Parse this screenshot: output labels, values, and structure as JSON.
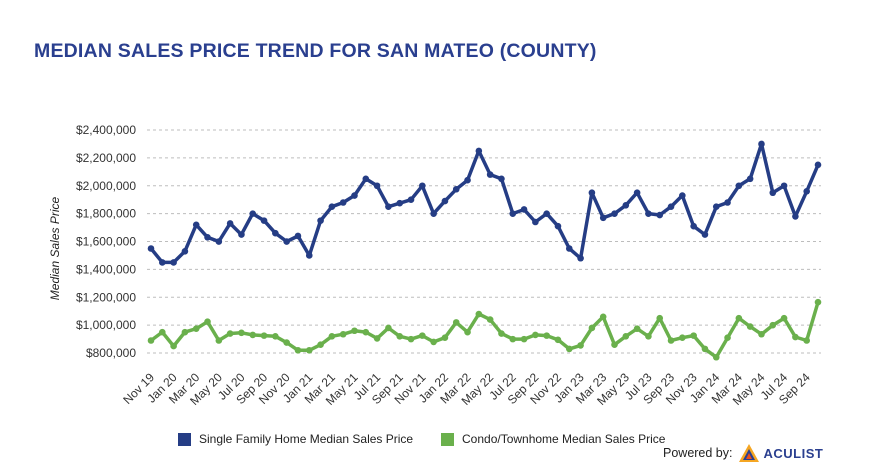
{
  "title": "MEDIAN SALES PRICE TREND FOR SAN MATEO (COUNTY)",
  "powered_by": {
    "label": "Powered by:",
    "brand": "ACULIST"
  },
  "chart_data": {
    "type": "line",
    "title": "MEDIAN SALES PRICE TREND FOR SAN MATEO (COUNTY)",
    "xlabel": "",
    "ylabel": "Median Sales Price",
    "ylim": [
      700000,
      2400000
    ],
    "yticks": [
      800000,
      1000000,
      1200000,
      1400000,
      1600000,
      1800000,
      2000000,
      2200000,
      2400000
    ],
    "ytick_labels": [
      "$800,000",
      "$1,000,000",
      "$1,200,000",
      "$1,400,000",
      "$1,600,000",
      "$1,800,000",
      "$2,000,000",
      "$2,200,000",
      "$2,400,000"
    ],
    "grid": true,
    "legend_position": "bottom",
    "x": [
      "Nov 19",
      "Dec 19",
      "Jan 20",
      "Feb 20",
      "Mar 20",
      "Apr 20",
      "May 20",
      "Jun 20",
      "Jul 20",
      "Aug 20",
      "Sep 20",
      "Oct 20",
      "Nov 20",
      "Dec 20",
      "Jan 21",
      "Feb 21",
      "Mar 21",
      "Apr 21",
      "May 21",
      "Jun 21",
      "Jul 21",
      "Aug 21",
      "Sep 21",
      "Oct 21",
      "Nov 21",
      "Dec 21",
      "Jan 22",
      "Feb 22",
      "Mar 22",
      "Apr 22",
      "May 22",
      "Jun 22",
      "Jul 22",
      "Aug 22",
      "Sep 22",
      "Oct 22",
      "Nov 22",
      "Dec 22",
      "Jan 23",
      "Feb 23",
      "Mar 23",
      "Apr 23",
      "May 23",
      "Jun 23",
      "Jul 23",
      "Aug 23",
      "Sep 23",
      "Oct 23",
      "Nov 23",
      "Dec 23",
      "Jan 24",
      "Feb 24",
      "Mar 24",
      "Apr 24",
      "May 24",
      "Jun 24",
      "Jul 24",
      "Aug 24",
      "Sep 24",
      "Oct 24"
    ],
    "x_tick_labels": [
      "Nov 19",
      "Jan 20",
      "Mar 20",
      "May 20",
      "Jul 20",
      "Sep 20",
      "Nov 20",
      "Jan 21",
      "Mar 21",
      "May 21",
      "Jul 21",
      "Sep 21",
      "Nov 21",
      "Jan 22",
      "Mar 22",
      "May 22",
      "Jul 22",
      "Sep 22",
      "Nov 22",
      "Jan 23",
      "Mar 23",
      "May 23",
      "Jul 23",
      "Sep 23",
      "Nov 23",
      "Jan 24",
      "Mar 24",
      "May 24",
      "Jul 24",
      "Sep 24"
    ],
    "series": [
      {
        "name": "Single Family Home Median Sales Price",
        "color": "#253d85",
        "values": [
          1550000,
          1450000,
          1450000,
          1530000,
          1720000,
          1630000,
          1600000,
          1730000,
          1650000,
          1800000,
          1750000,
          1660000,
          1600000,
          1640000,
          1500000,
          1750000,
          1850000,
          1880000,
          1930000,
          2050000,
          2000000,
          1850000,
          1875000,
          1900000,
          2000000,
          1800000,
          1890000,
          1975000,
          2040000,
          2250000,
          2080000,
          2050000,
          1800000,
          1830000,
          1740000,
          1800000,
          1710000,
          1550000,
          1480000,
          1950000,
          1770000,
          1800000,
          1860000,
          1950000,
          1800000,
          1790000,
          1850000,
          1930000,
          1710000,
          1650000,
          1850000,
          1880000,
          2000000,
          2050000,
          2300000,
          1950000,
          2000000,
          1780000,
          1960000,
          2150000
        ]
      },
      {
        "name": "Condo/Townhome Median Sales Price",
        "color": "#6ab04c",
        "values": [
          890000,
          950000,
          850000,
          950000,
          975000,
          1025000,
          890000,
          940000,
          945000,
          930000,
          925000,
          920000,
          875000,
          820000,
          820000,
          860000,
          920000,
          935000,
          960000,
          950000,
          905000,
          980000,
          920000,
          900000,
          925000,
          880000,
          910000,
          1020000,
          950000,
          1080000,
          1040000,
          940000,
          900000,
          900000,
          930000,
          925000,
          895000,
          830000,
          855000,
          980000,
          1060000,
          860000,
          920000,
          975000,
          920000,
          1050000,
          890000,
          910000,
          925000,
          830000,
          770000,
          910000,
          1050000,
          990000,
          935000,
          1000000,
          1050000,
          915000,
          890000,
          1165000
        ]
      }
    ]
  }
}
